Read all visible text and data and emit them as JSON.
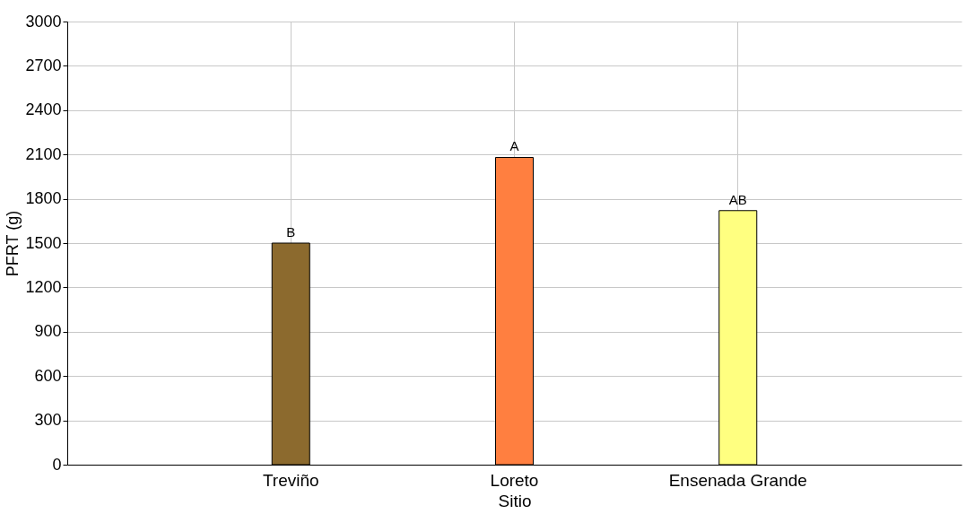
{
  "chart_data": {
    "type": "bar",
    "xlabel": "Sitio",
    "ylabel": "PFRT (g)",
    "categories": [
      "Treviño",
      "Loreto",
      "Ensenada Grande"
    ],
    "values": [
      1500,
      2080,
      1720
    ],
    "colors": [
      "#8c6a2e",
      "#ff7f40",
      "#ffff80"
    ],
    "ylim": [
      0,
      3000
    ],
    "yticks": [
      0,
      300,
      600,
      900,
      1200,
      1500,
      1800,
      2100,
      2400,
      2700,
      3000
    ],
    "grid": true,
    "annotations": [
      {
        "text": "B",
        "x": "Treviño",
        "y": 1500
      },
      {
        "text": "A",
        "x": "Loreto",
        "y": 2080
      },
      {
        "text": "AB",
        "x": "Ensenada Grande",
        "y": 1720
      }
    ]
  }
}
